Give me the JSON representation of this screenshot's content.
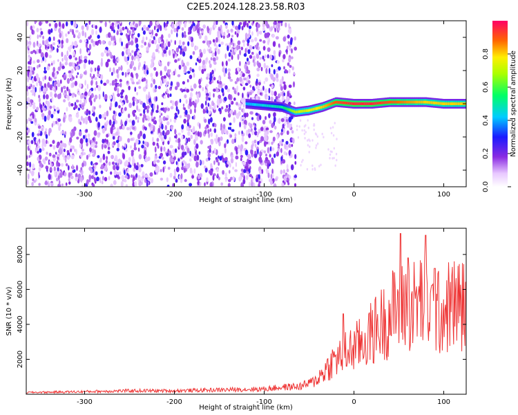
{
  "title": "C2E5.2024.128.23.58.R03",
  "chart_data": [
    {
      "type": "heatmap",
      "xlabel": "Height of straight line (km)",
      "ylabel": "Frequency (Hz)",
      "xlim": [
        -365,
        125
      ],
      "ylim": [
        -50,
        50
      ],
      "xticks": [
        -300,
        -200,
        -100,
        0,
        100
      ],
      "yticks": [
        -40,
        -20,
        0,
        20,
        40
      ],
      "colorbar": {
        "label": "Normalized spectral amplitude",
        "range": [
          0,
          1
        ],
        "ticks": [
          "0.0",
          "0.2",
          "0.4",
          "0.6",
          "0.8"
        ]
      },
      "noise_region_x": [
        -365,
        -65
      ],
      "ridge": {
        "description_points_x": [
          -120,
          -100,
          -80,
          -65,
          -50,
          -35,
          -20,
          0,
          20,
          40,
          60,
          80,
          100,
          125
        ],
        "frequency": [
          0,
          -1,
          -2,
          -5,
          -4,
          -2,
          1,
          0,
          0,
          1,
          1,
          1,
          0,
          0
        ],
        "peak_amplitude": [
          0.4,
          0.45,
          0.5,
          0.7,
          0.75,
          0.8,
          0.9,
          0.95,
          0.95,
          0.9,
          0.85,
          0.8,
          0.8,
          0.8
        ]
      }
    },
    {
      "type": "line",
      "xlabel": "Height of straight line (km)",
      "ylabel": "SNR (10 * v/v)",
      "xlim": [
        -365,
        125
      ],
      "ylim": [
        0,
        9500
      ],
      "xticks": [
        -300,
        -200,
        -100,
        0,
        100
      ],
      "yticks": [
        2000,
        4000,
        6000,
        8000
      ],
      "series": [
        {
          "color": "#ee3333",
          "x": [
            -365,
            -300,
            -250,
            -200,
            -150,
            -100,
            -80,
            -60,
            -45,
            -35,
            -25,
            -15,
            -5,
            5,
            15,
            25,
            35,
            45,
            55,
            65,
            75,
            85,
            95,
            105,
            115,
            125
          ],
          "y": [
            100,
            150,
            200,
            200,
            250,
            300,
            400,
            450,
            700,
            1200,
            1800,
            2200,
            2500,
            2800,
            3200,
            3800,
            4200,
            4800,
            5200,
            5000,
            5400,
            4800,
            4600,
            5000,
            5200,
            5000
          ],
          "peaks": [
            [
              52,
              9200
            ],
            [
              80,
              9100
            ],
            [
              -12,
              4600
            ],
            [
              60,
              7800
            ],
            [
              90,
              7200
            ]
          ]
        }
      ]
    }
  ]
}
